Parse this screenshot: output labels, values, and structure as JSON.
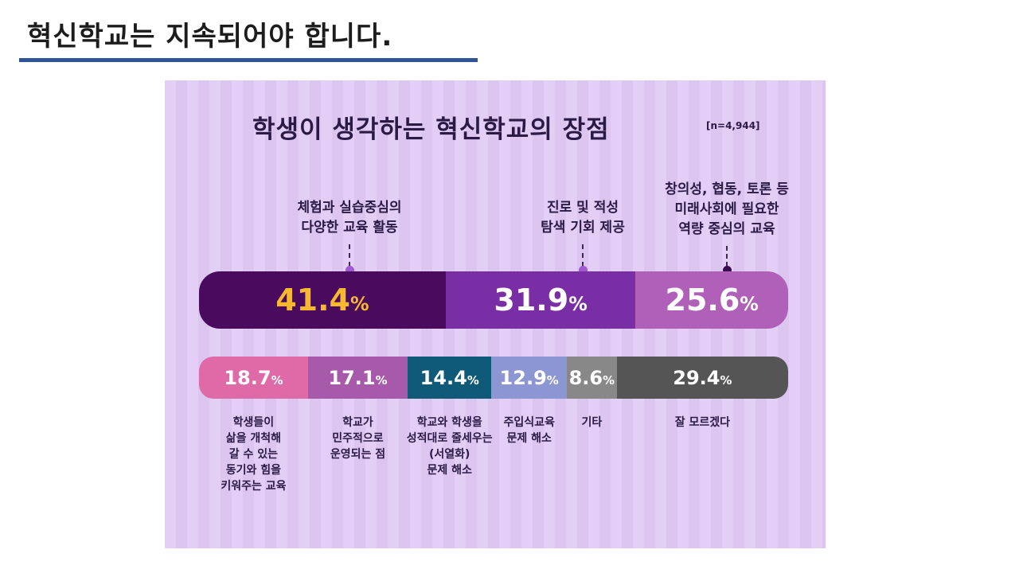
{
  "slide": {
    "title": "혁신학교는 지속되어야 합니다."
  },
  "colors": {
    "title_rule": "#2f5597",
    "background": "#e3cff5",
    "top_series": [
      "#4a0a5e",
      "#7a2ea6",
      "#b060b8"
    ],
    "bottom_series": [
      "#e06aa8",
      "#a85aaa",
      "#0e5a78",
      "#8c96d2",
      "#888888",
      "#555555"
    ],
    "highlight_value": "#f5b82e"
  },
  "chart_data": {
    "type": "bar",
    "title": "학생이 생각하는 혁신학교의 장점",
    "sample_note": "[n=4,944]",
    "series": [
      {
        "name": "top",
        "categories": [
          [
            "체험과 실습중심의",
            "다양한 교육 활동"
          ],
          [
            "진로 및 적성",
            "탐색 기회 제공"
          ],
          [
            "창의성, 협동, 토론 등",
            "미래사회에 필요한",
            "역량 중심의 교육"
          ]
        ],
        "values": [
          41.4,
          31.9,
          25.6
        ],
        "labels": [
          "41.4",
          "31.9",
          "25.6"
        ]
      },
      {
        "name": "bottom",
        "categories": [
          [
            "학생들이",
            "삶을 개척해",
            "갈 수 있는",
            "동기와 힘을",
            "키워주는 교육"
          ],
          [
            "학교가",
            "민주적으로",
            "운영되는 점"
          ],
          [
            "학교와 학생을",
            "성적대로 줄세우는",
            "(서열화)",
            "문제 해소"
          ],
          [
            "주입식교육",
            "문제 해소"
          ],
          [
            "기타"
          ],
          [
            "잘 모르겠다"
          ]
        ],
        "values": [
          18.7,
          17.1,
          14.4,
          12.9,
          8.6,
          29.4
        ],
        "labels": [
          "18.7",
          "17.1",
          "14.4",
          "12.9",
          "8.6",
          "29.4"
        ]
      }
    ],
    "unit": "%"
  }
}
